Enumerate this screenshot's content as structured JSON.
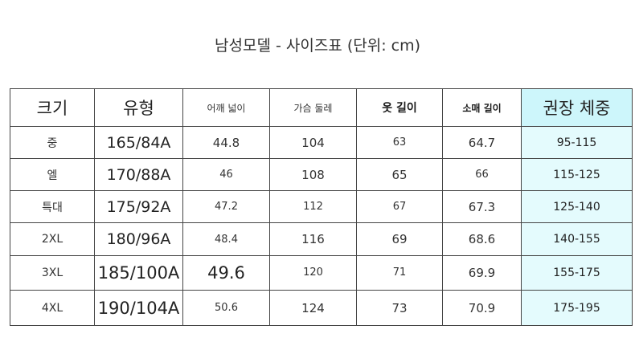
{
  "title": "남성모델 - 사이즈표 (단위: cm)",
  "table": {
    "headers": [
      "크기",
      "유형",
      "어깨 넓이",
      "가슴 둘레",
      "옷 길이",
      "소매 길이",
      "권장 체중"
    ],
    "rows": [
      [
        "중",
        "165/84A",
        "44.8",
        "104",
        "63",
        "64.7",
        "95-115"
      ],
      [
        "엘",
        "170/88A",
        "46",
        "108",
        "65",
        "66",
        "115-125"
      ],
      [
        "특대",
        "175/92A",
        "47.2",
        "112",
        "67",
        "67.3",
        "125-140"
      ],
      [
        "2XL",
        "180/96A",
        "48.4",
        "116",
        "69",
        "68.6",
        "140-155"
      ],
      [
        "3XL",
        "185/100A",
        "49.6",
        "120",
        "71",
        "69.9",
        "155-175"
      ],
      [
        "4XL",
        "190/104A",
        "50.6",
        "124",
        "73",
        "70.9",
        "175-195"
      ]
    ]
  },
  "colors": {
    "weight_header_bg": "#cdf6fb",
    "weight_cell_bg": "#e4fbfd",
    "border": "#444444"
  }
}
